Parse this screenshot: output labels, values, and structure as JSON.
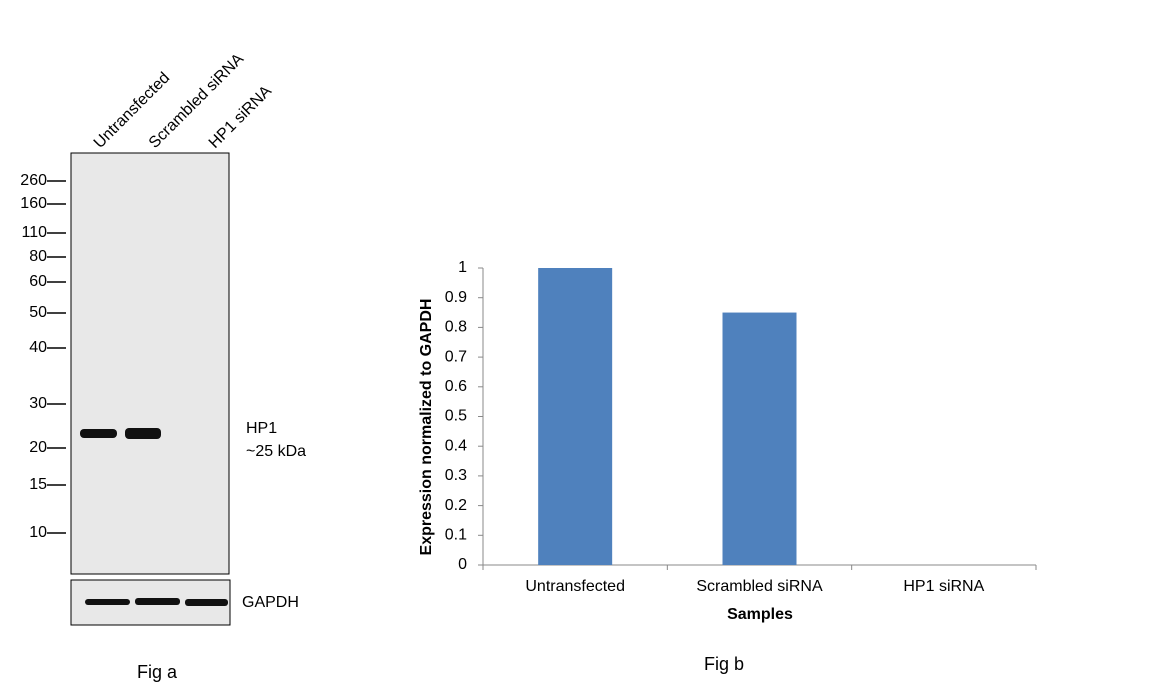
{
  "western_blot": {
    "lanes": [
      "Untransfected",
      "Scrambled siRNA",
      "HP1 siRNA"
    ],
    "markers": [
      "260",
      "160",
      "110",
      "80",
      "60",
      "50",
      "40",
      "30",
      "20",
      "15",
      "10"
    ],
    "band_label": [
      "HP1",
      "~25 kDa"
    ],
    "loading_control": "GAPDH",
    "caption": "Fig a"
  },
  "chart_data": {
    "type": "bar",
    "categories": [
      "Untransfected",
      "Scrambled siRNA",
      "HP1 siRNA"
    ],
    "values": [
      1,
      0.85,
      0
    ],
    "color": "#4f81bd",
    "ylim": [
      0,
      1
    ],
    "yticks": [
      0,
      0.1,
      0.2,
      0.3,
      0.4,
      0.5,
      0.6,
      0.7,
      0.8,
      0.9,
      1
    ],
    "x_label": "Samples",
    "y_label": "Expression normalized to GAPDH",
    "grid": false,
    "caption": "Fig b"
  }
}
